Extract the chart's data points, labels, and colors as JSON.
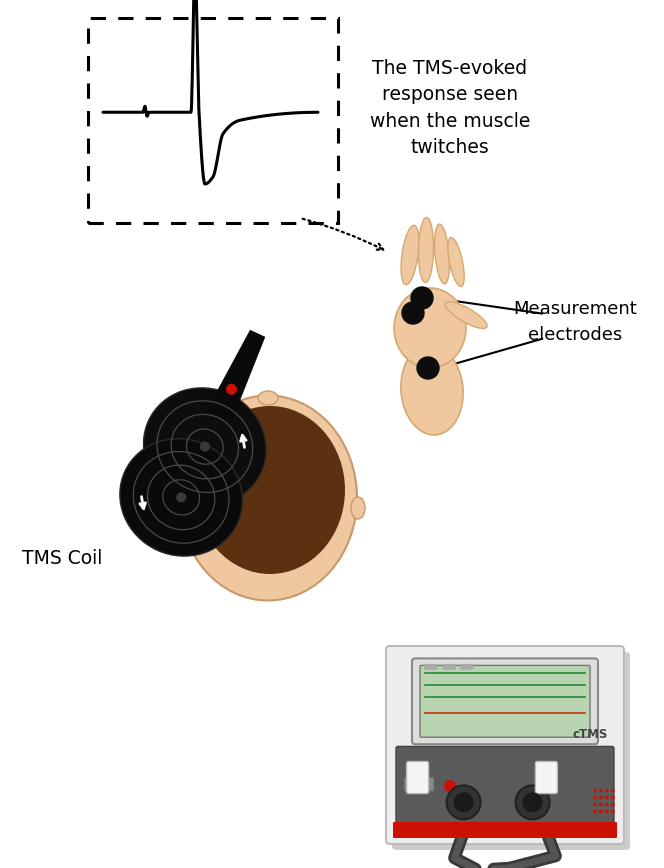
{
  "bg_color": "#ffffff",
  "text_tms_evoked": "The TMS-evoked\nresponse seen\nwhen the muscle\ntwitches",
  "text_measurement": "Measurement\nelectrodes",
  "text_tms_coil": "TMS Coil",
  "skin_color": "#f0c8a0",
  "hair_color": "#5c3010",
  "hand_color": "#f0c8a0",
  "hand_outline": "#d4a870",
  "electrode_color": "#111111",
  "coil_dark": "#0d0d0d",
  "coil_mid": "#1a1a1a",
  "coil_line": "#555555",
  "arrow_color": "#111111"
}
